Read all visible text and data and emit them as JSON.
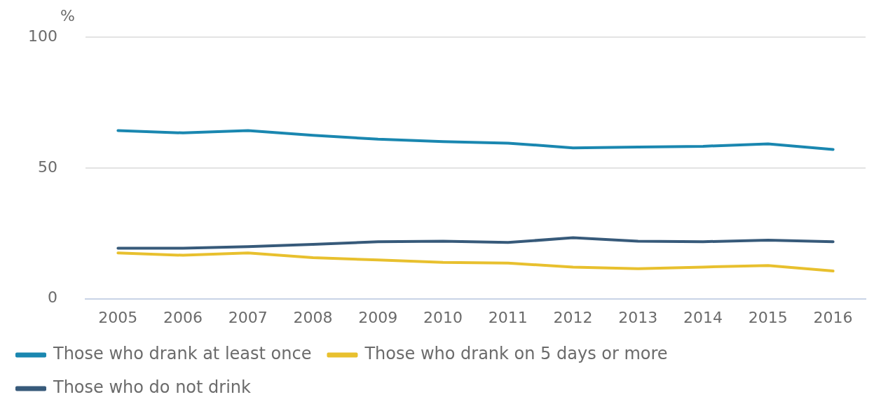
{
  "chart_data": {
    "type": "line",
    "ylabel": "%",
    "categories": [
      "2005",
      "2006",
      "2007",
      "2008",
      "2009",
      "2010",
      "2011",
      "2012",
      "2013",
      "2014",
      "2015",
      "2016"
    ],
    "series": [
      {
        "name": "Those who drank at least once",
        "color": "#1a87b0",
        "values": [
          64.3,
          63.4,
          64.3,
          62.5,
          61,
          60.1,
          59.5,
          57.7,
          58,
          58.3,
          59.2,
          57.1
        ]
      },
      {
        "name": "Those who drank on 5 days or more",
        "color": "#e8c02e",
        "values": [
          17.5,
          16.6,
          17.5,
          15.7,
          14.8,
          13.9,
          13.6,
          12.1,
          11.5,
          12.1,
          12.7,
          10.6
        ]
      },
      {
        "name": "Those who do not drink",
        "color": "#375a7a",
        "values": [
          19.3,
          19.3,
          19.9,
          20.8,
          21.8,
          22,
          21.5,
          23.3,
          22,
          21.8,
          22.4,
          21.8
        ]
      }
    ],
    "ylim": [
      0,
      100
    ],
    "yticks": [
      0,
      50,
      100
    ],
    "grid": "y",
    "legend": "bottom",
    "marker": "none",
    "line_style": "solid"
  }
}
